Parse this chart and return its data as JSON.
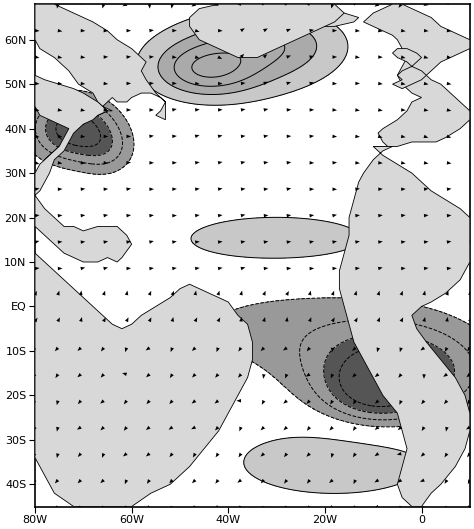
{
  "lon_min": -80,
  "lon_max": 10,
  "lat_min": -45,
  "lat_max": 68,
  "xticks": [
    -80,
    -60,
    -40,
    -20,
    0
  ],
  "xtick_labels": [
    "80W",
    "60W",
    "40W",
    "20W",
    "0"
  ],
  "yticks": [
    -40,
    -30,
    -20,
    -10,
    0,
    10,
    20,
    30,
    40,
    50,
    60
  ],
  "ytick_labels": [
    "40S",
    "30S",
    "20S",
    "10S",
    "EQ",
    "10N",
    "20N",
    "30N",
    "40N",
    "50N",
    "60N"
  ],
  "figsize": [
    4.74,
    5.29
  ],
  "dpi": 100,
  "dark_color": "#555555",
  "light_color": "#c8c8c8",
  "lighter_color": "#e0e0e0",
  "land_color": "#e0e0e0",
  "land_edge": "#000000",
  "sst_gaussians": [
    {
      "lon0": -38,
      "lat0": 56,
      "slon": 14,
      "slat": 7,
      "amp": 0.55
    },
    {
      "lon0": -45,
      "lat0": 53,
      "slon": 7,
      "slat": 4,
      "amp": 0.6
    },
    {
      "lon0": -30,
      "lat0": 60,
      "slon": 10,
      "slat": 5,
      "amp": 0.35
    },
    {
      "lon0": -30,
      "lat0": 15,
      "slon": 18,
      "slat": 5,
      "amp": 0.42
    },
    {
      "lon0": -18,
      "lat0": -35,
      "slon": 16,
      "slat": 6,
      "amp": 0.5
    },
    {
      "lon0": -72,
      "lat0": 40,
      "slon": 6,
      "slat": 5,
      "amp": -1.2
    },
    {
      "lon0": -65,
      "lat0": 35,
      "slon": 4,
      "slat": 4,
      "amp": -0.4
    },
    {
      "lon0": -5,
      "lat0": -15,
      "slon": 12,
      "slat": 7,
      "amp": -1.1
    },
    {
      "lon0": -10,
      "lat0": -20,
      "slon": 7,
      "slat": 5,
      "amp": -0.5
    },
    {
      "lon0": -25,
      "lat0": -5,
      "slon": 22,
      "slat": 8,
      "amp": -0.35
    },
    {
      "lon0": 5,
      "lat0": 47,
      "slon": 5,
      "slat": 6,
      "amp": 0.25
    }
  ]
}
